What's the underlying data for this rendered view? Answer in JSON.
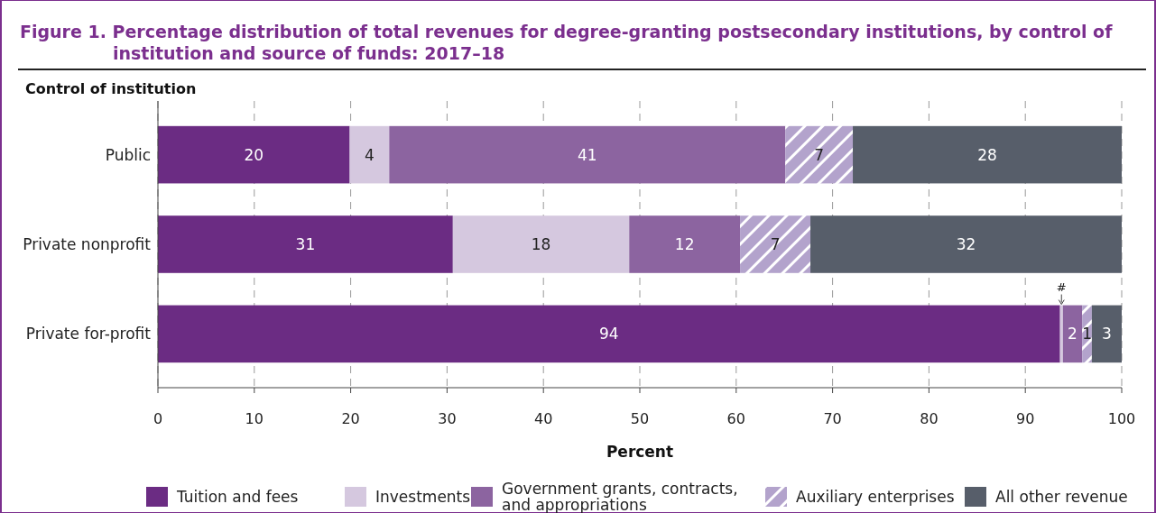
{
  "chart_data": {
    "type": "bar",
    "orientation": "horizontal",
    "stacked": true,
    "title": "Figure 1.   Percentage distribution of total revenues for degree-granting postsecondary institutions, by control of institution and source of funds: 2017–18",
    "ylabel": "Control of institution",
    "xlabel": "Percent",
    "categories": [
      "Public",
      "Private nonprofit",
      "Private for-profit"
    ],
    "series": [
      {
        "name": "Tuition and fees",
        "color": "#6b2c83",
        "values": [
          19.9,
          30.6,
          93.6
        ],
        "value_labels": [
          "20",
          "31",
          "94"
        ]
      },
      {
        "name": "Investments",
        "color": "#d5c8df",
        "values": [
          4.1,
          18.3,
          0.3
        ],
        "value_labels": [
          "4",
          "18",
          "#"
        ]
      },
      {
        "name": "Government grants, contracts, and appropriations",
        "color": "#8c64a0",
        "values": [
          41.1,
          11.5,
          2.0
        ],
        "value_labels": [
          "41",
          "12",
          "2"
        ]
      },
      {
        "name": "Auxiliary enterprises",
        "color": "#b3a3cc",
        "values": [
          7.0,
          7.3,
          1.0
        ],
        "value_labels": [
          "7",
          "7",
          "1"
        ]
      },
      {
        "name": "All other revenue",
        "color": "#575e6a",
        "values": [
          27.9,
          32.3,
          3.1
        ],
        "value_labels": [
          "28",
          "32",
          "3"
        ]
      }
    ],
    "xlim": [
      0,
      100
    ],
    "xticks": [
      0,
      10,
      20,
      30,
      40,
      50,
      60,
      70,
      80,
      90,
      100
    ],
    "grid": "x",
    "legend": "bottom"
  }
}
